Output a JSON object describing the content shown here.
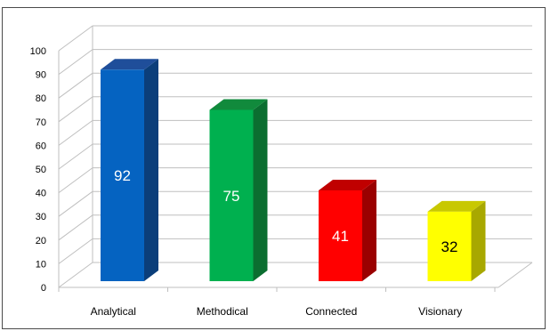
{
  "chart_data": {
    "type": "bar",
    "categories": [
      "Analytical",
      "Methodical",
      "Connected",
      "Visionary"
    ],
    "values": [
      92,
      75,
      41,
      32
    ],
    "title": "",
    "xlabel": "",
    "ylabel": "",
    "ylim": [
      0,
      100
    ],
    "yticks": [
      0,
      10,
      20,
      30,
      40,
      50,
      60,
      70,
      80,
      90,
      100
    ],
    "grid": true,
    "three_d": true,
    "data_labels": true,
    "colors": [
      {
        "front": "#0563C1",
        "top": "#1F4E9A",
        "side": "#0B3E7A",
        "label": "#ffffff"
      },
      {
        "front": "#00B04F",
        "top": "#118A3C",
        "side": "#0B6E30",
        "label": "#ffffff"
      },
      {
        "front": "#FF0000",
        "top": "#C00000",
        "side": "#9A0000",
        "label": "#ffffff"
      },
      {
        "front": "#FFFF00",
        "top": "#C8C800",
        "side": "#A8A800",
        "label": "#000000"
      }
    ],
    "grid_color": "#bfbfbf"
  }
}
